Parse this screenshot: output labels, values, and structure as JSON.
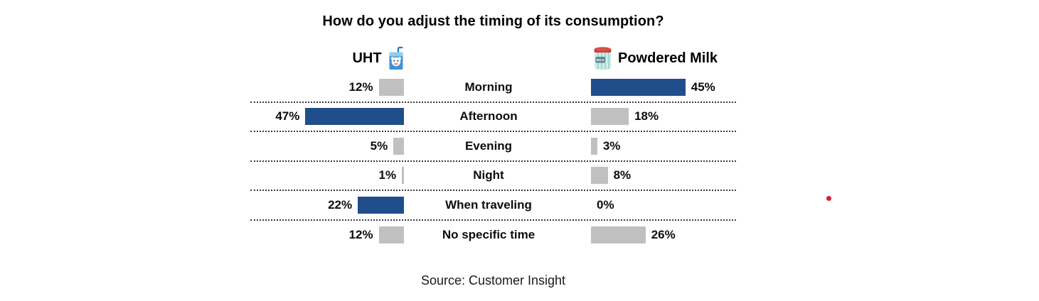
{
  "title": "How do you adjust the timing of its consumption?",
  "header": {
    "left": "UHT",
    "left_icon": "milk-carton-emoji",
    "right": "Powdered Milk",
    "right_icon": "powdered-milk-can-emoji"
  },
  "source": "Source: Customer Insight",
  "chart_data": {
    "type": "bar",
    "orientation": "horizontal-butterfly",
    "categories": [
      "Morning",
      "Afternoon",
      "Evening",
      "Night",
      "When traveling",
      "No specific time"
    ],
    "series": [
      {
        "name": "UHT",
        "side": "left",
        "values": [
          12,
          47,
          5,
          1,
          22,
          12
        ],
        "labels": [
          "12%",
          "47%",
          "5%",
          "1%",
          "22%",
          "12%"
        ],
        "bar_colors": [
          "#C0C0C0",
          "#1F4E8B",
          "#C0C0C0",
          "#C0C0C0",
          "#1F4E8B",
          "#C0C0C0"
        ]
      },
      {
        "name": "Powdered Milk",
        "side": "right",
        "values": [
          45,
          18,
          3,
          8,
          0,
          26
        ],
        "labels": [
          "45%",
          "18%",
          "3%",
          "8%",
          "0%",
          "26%"
        ],
        "bar_colors": [
          "#1F4E8B",
          "#C0C0C0",
          "#C0C0C0",
          "#C0C0C0",
          "#C0C0C0",
          "#C0C0C0"
        ]
      }
    ],
    "unit": "%",
    "xlim_percent": [
      0,
      50
    ],
    "colors": {
      "highlight_blue": "#1F4E8B",
      "neutral_gray": "#C0C0C0",
      "red_dot": "#D62128"
    },
    "gridlines": "dotted-row-separators",
    "legend_position": "none",
    "annotations": [
      {
        "name": "red-dot",
        "color": "#D62128"
      }
    ]
  }
}
